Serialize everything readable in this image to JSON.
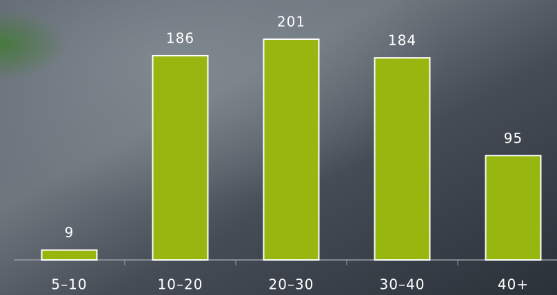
{
  "chart_data": {
    "type": "bar",
    "categories": [
      "5–10",
      "10–20",
      "20–30",
      "30–40",
      "40+"
    ],
    "values": [
      9,
      186,
      201,
      184,
      95
    ],
    "color": "#97b60f"
  }
}
